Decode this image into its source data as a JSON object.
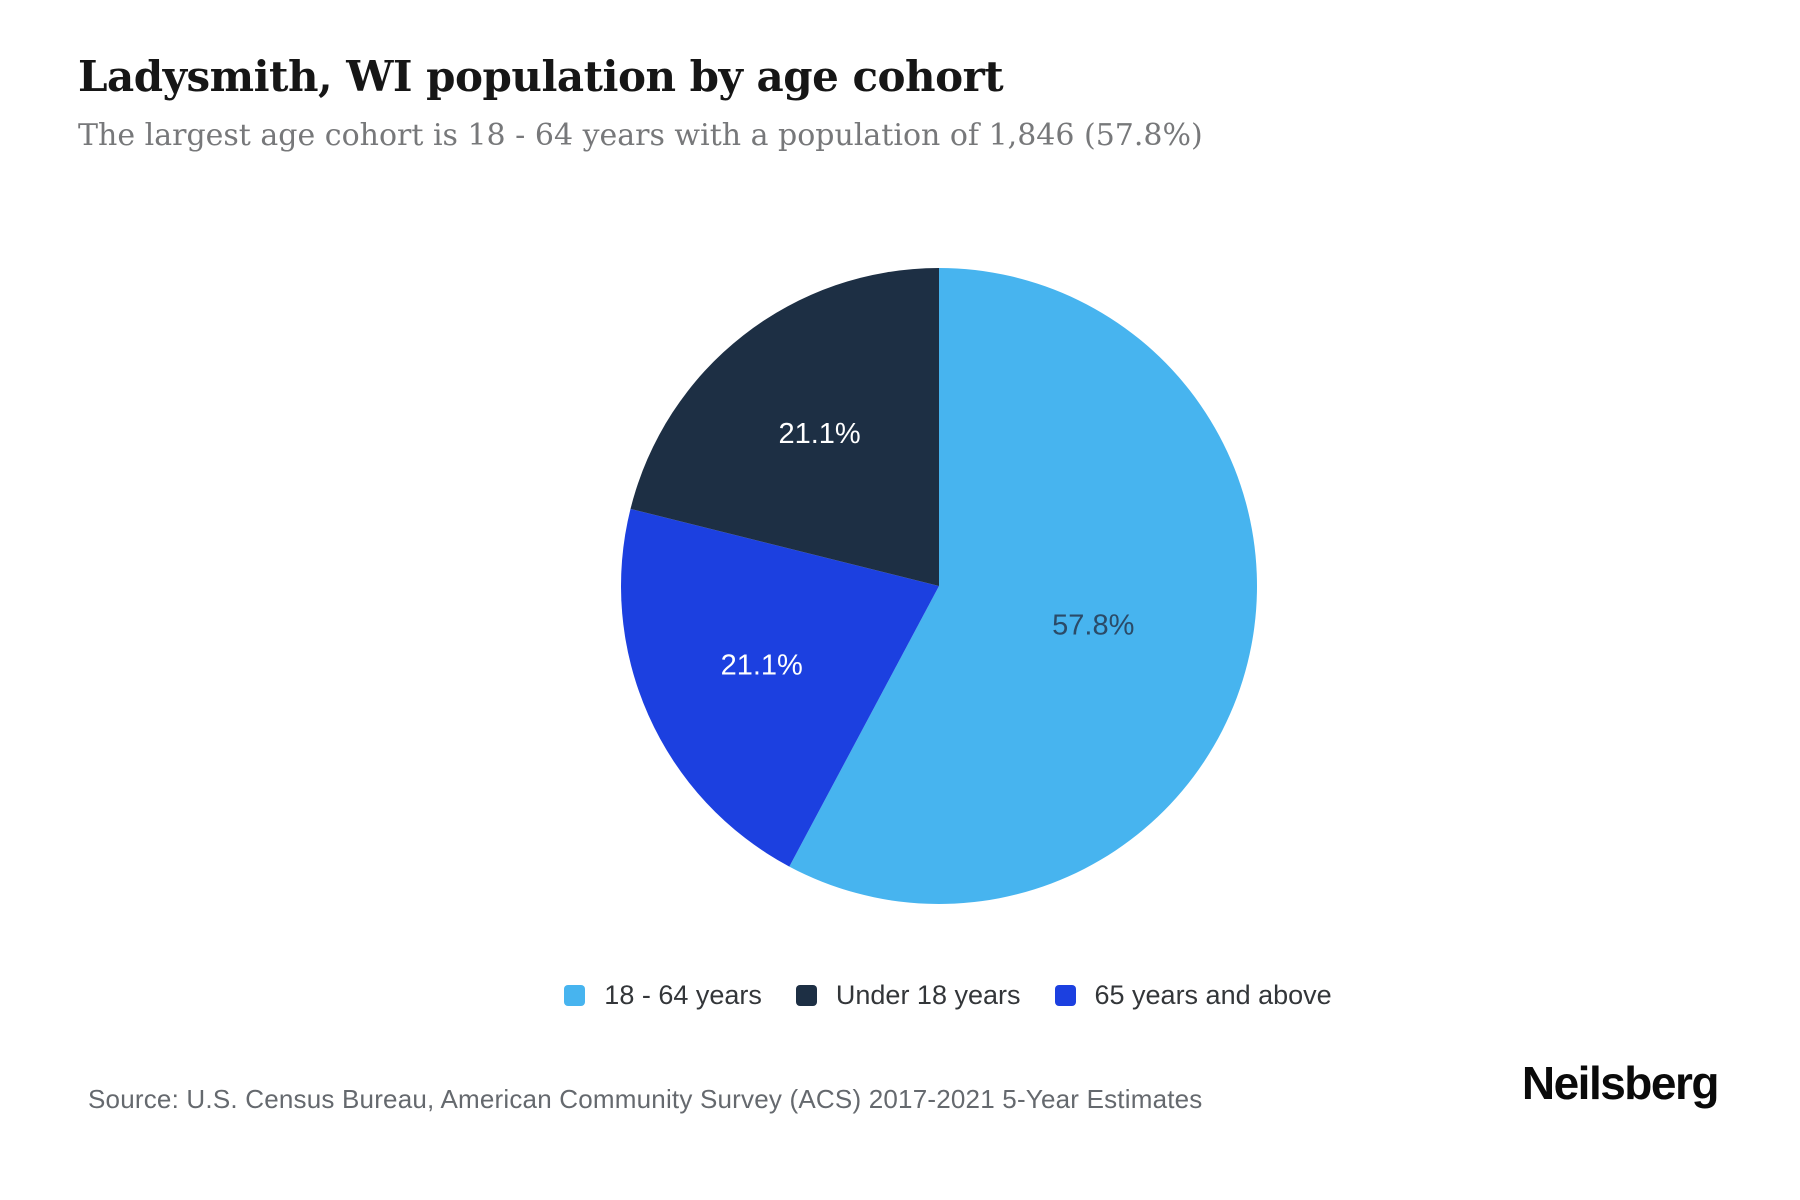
{
  "header": {
    "title": "Ladysmith, WI population by age cohort",
    "subtitle": "The largest age cohort is 18 - 64 years with a population of 1,846 (57.8%)"
  },
  "chart_data": {
    "type": "pie",
    "title": "Ladysmith, WI population by age cohort",
    "subtitle": "The largest age cohort is 18 - 64 years with a population of 1,846 (57.8%)",
    "unit": "percent of population",
    "start_angle_deg": 0,
    "direction": "clockwise",
    "slices": [
      {
        "label": "18 - 64 years",
        "value": 57.8,
        "display": "57.8%",
        "color": "#47b4ef",
        "label_color": "#2b4b68"
      },
      {
        "label": "65 years and above",
        "value": 21.1,
        "display": "21.1%",
        "color": "#1c40e0",
        "label_color": "#ffffff"
      },
      {
        "label": "Under 18 years",
        "value": 21.1,
        "display": "21.1%",
        "color": "#1d2f44",
        "label_color": "#ffffff"
      }
    ],
    "legend": {
      "position": "bottom-center",
      "order": [
        0,
        2,
        1
      ]
    }
  },
  "footer": {
    "source": "Source: U.S. Census Bureau, American Community Survey (ACS) 2017-2021 5-Year Estimates",
    "brand": "Neilsberg"
  }
}
